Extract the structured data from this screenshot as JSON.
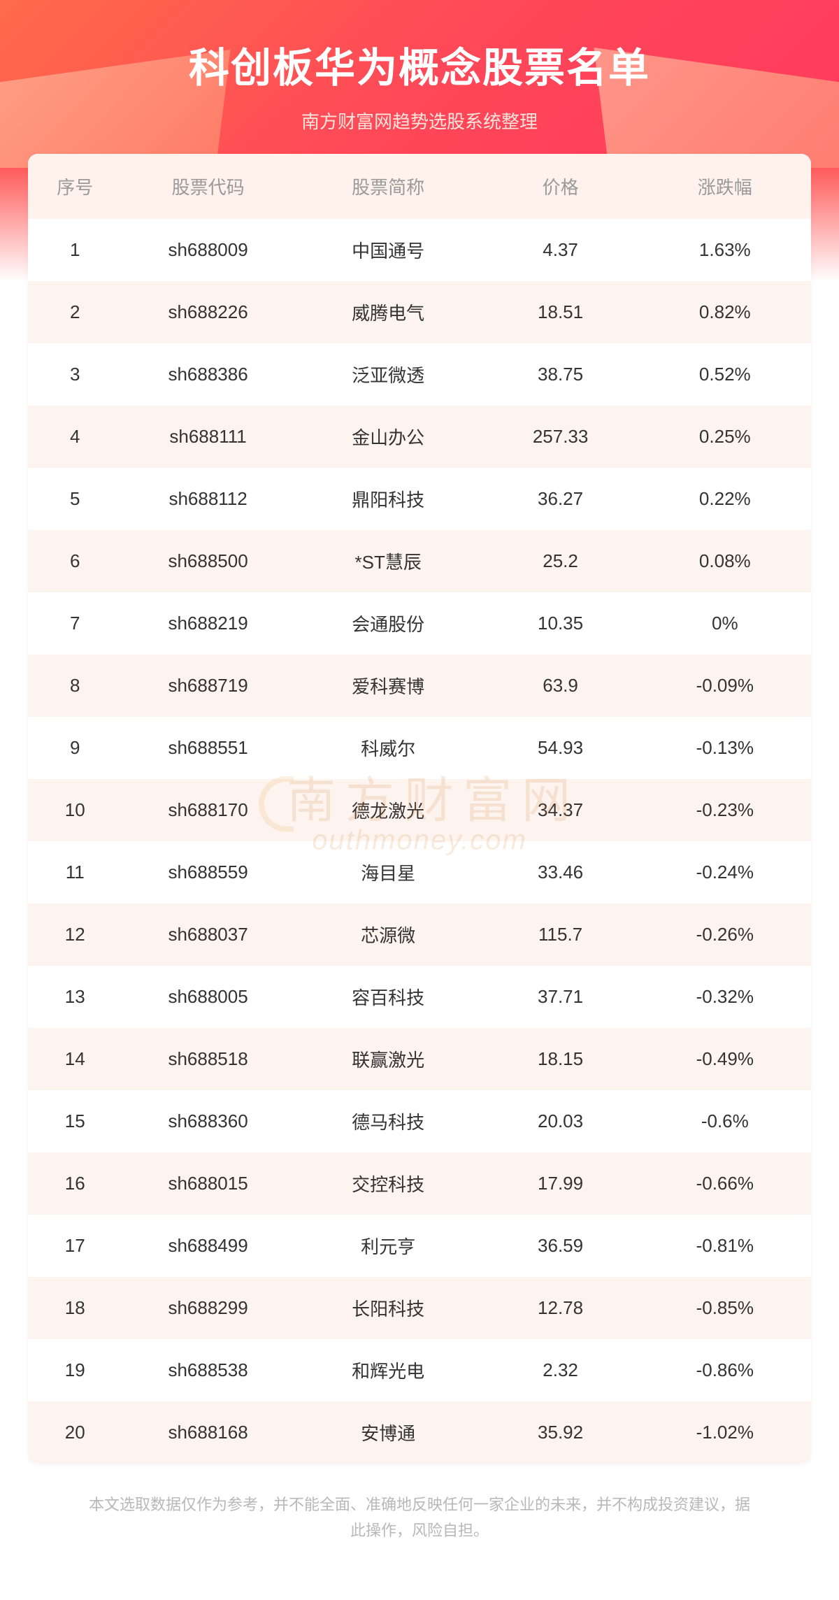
{
  "header": {
    "title": "科创板华为概念股票名单",
    "subtitle": "南方财富网趋势选股系统整理",
    "bg_gradient": [
      "#ff6b4a",
      "#ff4858",
      "#ff3a5e"
    ],
    "title_color": "#ffffff",
    "subtitle_color": "#ffe4dc",
    "title_fontsize": 58,
    "subtitle_fontsize": 26
  },
  "table": {
    "type": "table",
    "header_bg": "#fff2ec",
    "header_text_color": "#9a9a9a",
    "row_even_bg": "#fdf4ef",
    "row_odd_bg": "#ffffff",
    "cell_text_color": "#333333",
    "cell_fontsize": 26,
    "columns": [
      {
        "key": "seq",
        "label": "序号",
        "width": "12%"
      },
      {
        "key": "code",
        "label": "股票代码",
        "width": "22%"
      },
      {
        "key": "name",
        "label": "股票简称",
        "width": "24%"
      },
      {
        "key": "price",
        "label": "价格",
        "width": "20%"
      },
      {
        "key": "change",
        "label": "涨跌幅",
        "width": "22%"
      }
    ],
    "rows": [
      {
        "seq": "1",
        "code": "sh688009",
        "name": "中国通号",
        "price": "4.37",
        "change": "1.63%"
      },
      {
        "seq": "2",
        "code": "sh688226",
        "name": "威腾电气",
        "price": "18.51",
        "change": "0.82%"
      },
      {
        "seq": "3",
        "code": "sh688386",
        "name": "泛亚微透",
        "price": "38.75",
        "change": "0.52%"
      },
      {
        "seq": "4",
        "code": "sh688111",
        "name": "金山办公",
        "price": "257.33",
        "change": "0.25%"
      },
      {
        "seq": "5",
        "code": "sh688112",
        "name": "鼎阳科技",
        "price": "36.27",
        "change": "0.22%"
      },
      {
        "seq": "6",
        "code": "sh688500",
        "name": "*ST慧辰",
        "price": "25.2",
        "change": "0.08%"
      },
      {
        "seq": "7",
        "code": "sh688219",
        "name": "会通股份",
        "price": "10.35",
        "change": "0%"
      },
      {
        "seq": "8",
        "code": "sh688719",
        "name": "爱科赛博",
        "price": "63.9",
        "change": "-0.09%"
      },
      {
        "seq": "9",
        "code": "sh688551",
        "name": "科威尔",
        "price": "54.93",
        "change": "-0.13%"
      },
      {
        "seq": "10",
        "code": "sh688170",
        "name": "德龙激光",
        "price": "34.37",
        "change": "-0.23%"
      },
      {
        "seq": "11",
        "code": "sh688559",
        "name": "海目星",
        "price": "33.46",
        "change": "-0.24%"
      },
      {
        "seq": "12",
        "code": "sh688037",
        "name": "芯源微",
        "price": "115.7",
        "change": "-0.26%"
      },
      {
        "seq": "13",
        "code": "sh688005",
        "name": "容百科技",
        "price": "37.71",
        "change": "-0.32%"
      },
      {
        "seq": "14",
        "code": "sh688518",
        "name": "联赢激光",
        "price": "18.15",
        "change": "-0.49%"
      },
      {
        "seq": "15",
        "code": "sh688360",
        "name": "德马科技",
        "price": "20.03",
        "change": "-0.6%"
      },
      {
        "seq": "16",
        "code": "sh688015",
        "name": "交控科技",
        "price": "17.99",
        "change": "-0.66%"
      },
      {
        "seq": "17",
        "code": "sh688499",
        "name": "利元亨",
        "price": "36.59",
        "change": "-0.81%"
      },
      {
        "seq": "18",
        "code": "sh688299",
        "name": "长阳科技",
        "price": "12.78",
        "change": "-0.85%"
      },
      {
        "seq": "19",
        "code": "sh688538",
        "name": "和辉光电",
        "price": "2.32",
        "change": "-0.86%"
      },
      {
        "seq": "20",
        "code": "sh688168",
        "name": "安博通",
        "price": "35.92",
        "change": "-1.02%"
      }
    ]
  },
  "watermark": {
    "cn": "南方财富网",
    "en": "outhmoney.com",
    "color": "#d98f4a",
    "opacity": 0.18
  },
  "disclaimer": {
    "text": "本文选取数据仅作为参考，并不能全面、准确地反映任何一家企业的未来，并不构成投资建议，据此操作，风险自担。",
    "color": "#b8b8b8",
    "fontsize": 22
  }
}
